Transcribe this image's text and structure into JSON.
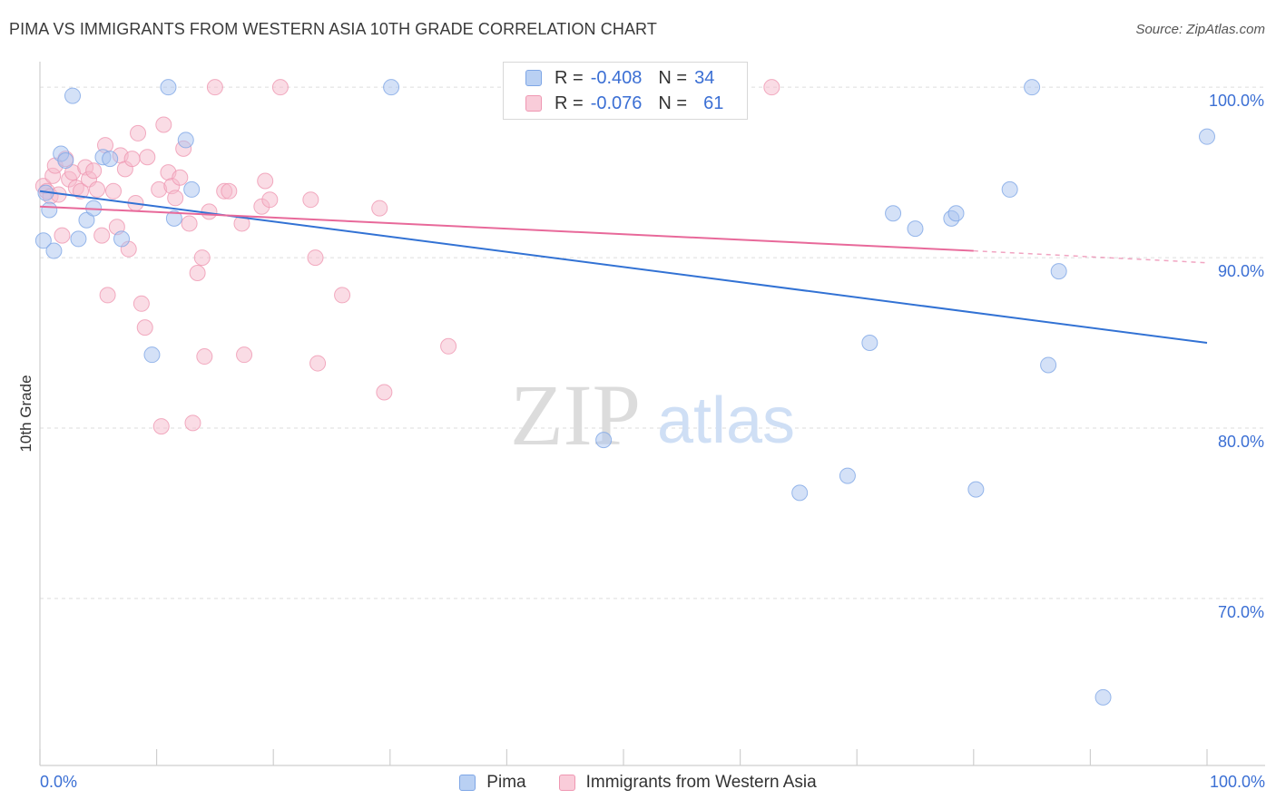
{
  "title": "PIMA VS IMMIGRANTS FROM WESTERN ASIA 10TH GRADE CORRELATION CHART",
  "source": "Source: ZipAtlas.com",
  "watermark": {
    "zip": "ZIP",
    "atlas": "atlas"
  },
  "colors": {
    "pima": "#a9c4ef",
    "pima_stroke": "#7ea6e6",
    "pima_line": "#3272d4",
    "immigrants": "#f6b9cb",
    "immigrants_stroke": "#ef97b2",
    "immigrants_line": "#e8699a",
    "axis_text": "#3b6fd4",
    "grid": "#dedede"
  },
  "legend": {
    "pima": {
      "r_label": "R =",
      "r_value": "-0.408",
      "n_label": "N =",
      "n_value": "34"
    },
    "immigrants": {
      "r_label": "R =",
      "r_value": "-0.076",
      "n_label": "N =",
      "n_value": "61"
    }
  },
  "bottom_legend": {
    "pima": "Pima",
    "immigrants": "Immigrants from Western Asia"
  },
  "x_tick_labels": {
    "left": "0.0%",
    "right": "100.0%"
  },
  "chart_data": {
    "type": "scatter",
    "title": "PIMA VS IMMIGRANTS FROM WESTERN ASIA 10TH GRADE CORRELATION CHART",
    "xlabel": "",
    "ylabel": "10th Grade",
    "xlim": [
      0,
      100
    ],
    "ylim": [
      60.2,
      101.5
    ],
    "y_ticks": [
      {
        "value": 100,
        "label": "100.0%"
      },
      {
        "value": 90,
        "label": "90.0%"
      },
      {
        "value": 80,
        "label": "80.0%"
      },
      {
        "value": 70,
        "label": "70.0%"
      }
    ],
    "grid": true,
    "legend_position": "top-center",
    "series": [
      {
        "name": "Pima",
        "color": "#a9c4ef",
        "points": [
          [
            0.3,
            91.0
          ],
          [
            0.8,
            92.8
          ],
          [
            1.2,
            90.4
          ],
          [
            1.8,
            96.1
          ],
          [
            2.2,
            95.7
          ],
          [
            2.8,
            99.5
          ],
          [
            3.3,
            91.1
          ],
          [
            4.0,
            92.2
          ],
          [
            4.6,
            92.9
          ],
          [
            5.4,
            95.9
          ],
          [
            6.0,
            95.8
          ],
          [
            7.0,
            91.1
          ],
          [
            9.6,
            84.3
          ],
          [
            11.0,
            100.0
          ],
          [
            11.5,
            92.3
          ],
          [
            12.5,
            96.9
          ],
          [
            13.0,
            94.0
          ],
          [
            30.1,
            100.0
          ],
          [
            48.3,
            79.3
          ],
          [
            65.1,
            76.2
          ],
          [
            69.2,
            77.2
          ],
          [
            71.1,
            85.0
          ],
          [
            73.1,
            92.6
          ],
          [
            75.0,
            91.7
          ],
          [
            78.1,
            92.3
          ],
          [
            78.5,
            92.6
          ],
          [
            80.2,
            76.4
          ],
          [
            83.1,
            94.0
          ],
          [
            85.0,
            100.0
          ],
          [
            86.4,
            83.7
          ],
          [
            87.3,
            89.2
          ],
          [
            91.1,
            64.2
          ],
          [
            100.0,
            97.1
          ],
          [
            0.5,
            93.8
          ]
        ],
        "trend": {
          "x0": 0,
          "y0": 93.9,
          "x1": 100,
          "y1": 85.0
        }
      },
      {
        "name": "Immigrants from Western Asia",
        "color": "#f6b9cb",
        "points": [
          [
            0.3,
            94.2
          ],
          [
            0.6,
            93.9
          ],
          [
            0.9,
            93.6
          ],
          [
            1.1,
            94.8
          ],
          [
            1.3,
            95.4
          ],
          [
            1.6,
            93.7
          ],
          [
            1.9,
            91.3
          ],
          [
            2.2,
            95.8
          ],
          [
            2.5,
            94.6
          ],
          [
            2.8,
            95.0
          ],
          [
            3.1,
            94.1
          ],
          [
            3.5,
            93.9
          ],
          [
            3.9,
            95.3
          ],
          [
            4.2,
            94.6
          ],
          [
            4.6,
            95.1
          ],
          [
            4.9,
            94.0
          ],
          [
            5.3,
            91.3
          ],
          [
            5.6,
            96.6
          ],
          [
            5.8,
            87.8
          ],
          [
            6.3,
            93.9
          ],
          [
            6.6,
            91.8
          ],
          [
            6.9,
            96.0
          ],
          [
            7.3,
            95.2
          ],
          [
            7.6,
            90.5
          ],
          [
            7.9,
            95.8
          ],
          [
            8.2,
            93.2
          ],
          [
            8.4,
            97.3
          ],
          [
            8.7,
            87.3
          ],
          [
            9.0,
            85.9
          ],
          [
            10.2,
            94.0
          ],
          [
            10.4,
            80.1
          ],
          [
            10.6,
            97.8
          ],
          [
            11.0,
            95.0
          ],
          [
            11.3,
            94.2
          ],
          [
            11.6,
            93.5
          ],
          [
            12.0,
            94.7
          ],
          [
            12.3,
            96.4
          ],
          [
            12.8,
            92.0
          ],
          [
            13.1,
            80.3
          ],
          [
            13.5,
            89.1
          ],
          [
            13.9,
            90.0
          ],
          [
            14.1,
            84.2
          ],
          [
            14.5,
            92.7
          ],
          [
            15.0,
            100.0
          ],
          [
            15.8,
            93.9
          ],
          [
            16.2,
            93.9
          ],
          [
            17.3,
            92.0
          ],
          [
            17.5,
            84.3
          ],
          [
            19.0,
            93.0
          ],
          [
            19.3,
            94.5
          ],
          [
            19.7,
            93.4
          ],
          [
            20.6,
            100.0
          ],
          [
            23.2,
            93.4
          ],
          [
            23.6,
            90.0
          ],
          [
            23.8,
            83.8
          ],
          [
            25.9,
            87.8
          ],
          [
            29.1,
            92.9
          ],
          [
            29.5,
            82.1
          ],
          [
            35.0,
            84.8
          ],
          [
            62.7,
            100.0
          ],
          [
            9.2,
            95.9
          ]
        ],
        "trend": {
          "x0": 0,
          "y0": 93.0,
          "x1": 80,
          "y1": 90.4,
          "dashed_to": {
            "x": 100,
            "y": 89.7
          }
        }
      }
    ]
  }
}
